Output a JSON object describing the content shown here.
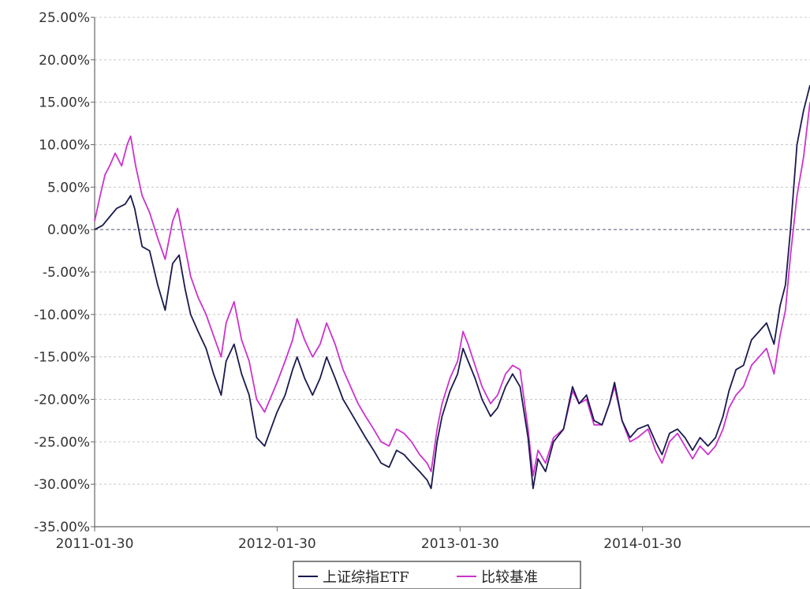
{
  "chart_data": {
    "type": "line",
    "title": "",
    "xlabel": "",
    "ylabel": "",
    "x_ticks": [
      "2011-01-30",
      "2012-01-30",
      "2013-01-30",
      "2014-01-30"
    ],
    "y_ticks": [
      "25.00%",
      "20.00%",
      "15.00%",
      "10.00%",
      "5.00%",
      "0.00%",
      "-5.00%",
      "-10.00%",
      "-15.00%",
      "-20.00%",
      "-25.00%",
      "-30.00%",
      "-35.00%"
    ],
    "xlim": [
      "2011-01-30",
      "2014-12-31"
    ],
    "ylim": [
      -35,
      25
    ],
    "y_unit": "%",
    "grid": "horizontal dashed",
    "zero_line": "dashed",
    "legend_position": "bottom-center",
    "series": [
      {
        "name": "上证综指ETF",
        "color": "#1a1a4e",
        "points": [
          [
            "2011-01-30",
            0.0
          ],
          [
            "2011-02-15",
            0.5
          ],
          [
            "2011-03-01",
            1.5
          ],
          [
            "2011-03-15",
            2.5
          ],
          [
            "2011-04-01",
            3.0
          ],
          [
            "2011-04-12",
            4.0
          ],
          [
            "2011-04-20",
            2.5
          ],
          [
            "2011-05-05",
            -2.0
          ],
          [
            "2011-05-20",
            -2.5
          ],
          [
            "2011-06-05",
            -6.5
          ],
          [
            "2011-06-20",
            -9.5
          ],
          [
            "2011-07-05",
            -4.0
          ],
          [
            "2011-07-18",
            -3.0
          ],
          [
            "2011-07-30",
            -7.0
          ],
          [
            "2011-08-10",
            -10.0
          ],
          [
            "2011-08-25",
            -12.0
          ],
          [
            "2011-09-10",
            -14.0
          ],
          [
            "2011-09-25",
            -17.0
          ],
          [
            "2011-10-10",
            -19.5
          ],
          [
            "2011-10-20",
            -15.5
          ],
          [
            "2011-11-05",
            -13.5
          ],
          [
            "2011-11-20",
            -17.0
          ],
          [
            "2011-12-05",
            -19.5
          ],
          [
            "2011-12-20",
            -24.5
          ],
          [
            "2012-01-05",
            -25.5
          ],
          [
            "2012-01-30",
            -21.5
          ],
          [
            "2012-02-15",
            -19.5
          ],
          [
            "2012-03-01",
            -16.5
          ],
          [
            "2012-03-10",
            -15.0
          ],
          [
            "2012-03-25",
            -17.5
          ],
          [
            "2012-04-10",
            -19.5
          ],
          [
            "2012-04-25",
            -17.5
          ],
          [
            "2012-05-08",
            -15.0
          ],
          [
            "2012-05-25",
            -17.5
          ],
          [
            "2012-06-10",
            -20.0
          ],
          [
            "2012-06-25",
            -21.5
          ],
          [
            "2012-07-10",
            -23.0
          ],
          [
            "2012-07-25",
            -24.5
          ],
          [
            "2012-08-10",
            -26.0
          ],
          [
            "2012-08-25",
            -27.5
          ],
          [
            "2012-09-10",
            -28.0
          ],
          [
            "2012-09-25",
            -26.0
          ],
          [
            "2012-10-10",
            -26.5
          ],
          [
            "2012-10-25",
            -27.5
          ],
          [
            "2012-11-10",
            -28.5
          ],
          [
            "2012-11-25",
            -29.5
          ],
          [
            "2012-12-03",
            -30.5
          ],
          [
            "2012-12-15",
            -25.0
          ],
          [
            "2012-12-25",
            -22.0
          ],
          [
            "2013-01-10",
            -19.0
          ],
          [
            "2013-01-25",
            -17.0
          ],
          [
            "2013-02-05",
            -14.0
          ],
          [
            "2013-02-15",
            -15.5
          ],
          [
            "2013-03-01",
            -17.5
          ],
          [
            "2013-03-15",
            -20.0
          ],
          [
            "2013-04-01",
            -22.0
          ],
          [
            "2013-04-15",
            -21.0
          ],
          [
            "2013-05-01",
            -18.5
          ],
          [
            "2013-05-15",
            -17.0
          ],
          [
            "2013-05-30",
            -18.5
          ],
          [
            "2013-06-15",
            -24.5
          ],
          [
            "2013-06-25",
            -30.5
          ],
          [
            "2013-07-05",
            -27.0
          ],
          [
            "2013-07-20",
            -28.5
          ],
          [
            "2013-08-05",
            -25.0
          ],
          [
            "2013-08-25",
            -23.5
          ],
          [
            "2013-09-12",
            -18.5
          ],
          [
            "2013-09-25",
            -20.5
          ],
          [
            "2013-10-10",
            -19.5
          ],
          [
            "2013-10-25",
            -22.5
          ],
          [
            "2013-11-10",
            -23.0
          ],
          [
            "2013-11-25",
            -20.5
          ],
          [
            "2013-12-05",
            -18.0
          ],
          [
            "2013-12-20",
            -22.5
          ],
          [
            "2014-01-05",
            -24.5
          ],
          [
            "2014-01-20",
            -23.5
          ],
          [
            "2014-02-10",
            -23.0
          ],
          [
            "2014-02-25",
            -25.0
          ],
          [
            "2014-03-10",
            -26.5
          ],
          [
            "2014-03-25",
            -24.0
          ],
          [
            "2014-04-10",
            -23.5
          ],
          [
            "2014-04-25",
            -24.5
          ],
          [
            "2014-05-10",
            -26.0
          ],
          [
            "2014-05-25",
            -24.5
          ],
          [
            "2014-06-10",
            -25.5
          ],
          [
            "2014-06-25",
            -24.5
          ],
          [
            "2014-07-10",
            -22.0
          ],
          [
            "2014-07-22",
            -19.0
          ],
          [
            "2014-08-05",
            -16.5
          ],
          [
            "2014-08-20",
            -16.0
          ],
          [
            "2014-09-05",
            -13.0
          ],
          [
            "2014-09-20",
            -12.0
          ],
          [
            "2014-10-05",
            -11.0
          ],
          [
            "2014-10-20",
            -13.5
          ],
          [
            "2014-11-01",
            -9.0
          ],
          [
            "2014-11-12",
            -6.5
          ],
          [
            "2014-11-22",
            0.0
          ],
          [
            "2014-12-05",
            10.0
          ],
          [
            "2014-12-18",
            14.0
          ],
          [
            "2014-12-31",
            17.0
          ]
        ]
      },
      {
        "name": "比较基准",
        "color": "#cc33cc",
        "points": [
          [
            "2011-01-30",
            1.0
          ],
          [
            "2011-02-10",
            4.0
          ],
          [
            "2011-02-20",
            6.5
          ],
          [
            "2011-03-01",
            7.5
          ],
          [
            "2011-03-12",
            9.0
          ],
          [
            "2011-03-25",
            7.5
          ],
          [
            "2011-04-05",
            10.0
          ],
          [
            "2011-04-12",
            11.0
          ],
          [
            "2011-04-22",
            7.5
          ],
          [
            "2011-05-05",
            4.0
          ],
          [
            "2011-05-20",
            2.0
          ],
          [
            "2011-06-05",
            -1.0
          ],
          [
            "2011-06-20",
            -3.5
          ],
          [
            "2011-07-05",
            1.0
          ],
          [
            "2011-07-15",
            2.5
          ],
          [
            "2011-07-28",
            -1.5
          ],
          [
            "2011-08-10",
            -5.5
          ],
          [
            "2011-08-25",
            -8.0
          ],
          [
            "2011-09-10",
            -10.0
          ],
          [
            "2011-09-25",
            -12.5
          ],
          [
            "2011-10-10",
            -15.0
          ],
          [
            "2011-10-20",
            -11.0
          ],
          [
            "2011-11-05",
            -8.5
          ],
          [
            "2011-11-20",
            -13.0
          ],
          [
            "2011-12-05",
            -15.5
          ],
          [
            "2011-12-20",
            -20.0
          ],
          [
            "2012-01-05",
            -21.5
          ],
          [
            "2012-01-30",
            -18.0
          ],
          [
            "2012-02-15",
            -15.5
          ],
          [
            "2012-03-01",
            -13.0
          ],
          [
            "2012-03-10",
            -10.5
          ],
          [
            "2012-03-25",
            -13.0
          ],
          [
            "2012-04-10",
            -15.0
          ],
          [
            "2012-04-25",
            -13.5
          ],
          [
            "2012-05-08",
            -11.0
          ],
          [
            "2012-05-25",
            -13.5
          ],
          [
            "2012-06-10",
            -16.5
          ],
          [
            "2012-06-25",
            -18.5
          ],
          [
            "2012-07-10",
            -20.5
          ],
          [
            "2012-07-25",
            -22.0
          ],
          [
            "2012-08-10",
            -23.5
          ],
          [
            "2012-08-25",
            -25.0
          ],
          [
            "2012-09-10",
            -25.5
          ],
          [
            "2012-09-25",
            -23.5
          ],
          [
            "2012-10-10",
            -24.0
          ],
          [
            "2012-10-25",
            -25.0
          ],
          [
            "2012-11-10",
            -26.5
          ],
          [
            "2012-11-25",
            -27.5
          ],
          [
            "2012-12-03",
            -28.5
          ],
          [
            "2012-12-15",
            -23.5
          ],
          [
            "2012-12-25",
            -20.5
          ],
          [
            "2013-01-10",
            -17.5
          ],
          [
            "2013-01-25",
            -15.5
          ],
          [
            "2013-02-05",
            -12.0
          ],
          [
            "2013-02-15",
            -13.5
          ],
          [
            "2013-03-01",
            -16.0
          ],
          [
            "2013-03-15",
            -18.5
          ],
          [
            "2013-04-01",
            -20.5
          ],
          [
            "2013-04-15",
            -19.5
          ],
          [
            "2013-05-01",
            -17.0
          ],
          [
            "2013-05-15",
            -16.0
          ],
          [
            "2013-05-30",
            -16.5
          ],
          [
            "2013-06-15",
            -23.5
          ],
          [
            "2013-06-25",
            -29.0
          ],
          [
            "2013-07-05",
            -26.0
          ],
          [
            "2013-07-20",
            -27.5
          ],
          [
            "2013-08-05",
            -24.5
          ],
          [
            "2013-08-25",
            -23.5
          ],
          [
            "2013-09-12",
            -19.0
          ],
          [
            "2013-09-25",
            -20.5
          ],
          [
            "2013-10-10",
            -20.0
          ],
          [
            "2013-10-25",
            -23.0
          ],
          [
            "2013-11-10",
            -23.0
          ],
          [
            "2013-11-25",
            -20.5
          ],
          [
            "2013-12-05",
            -18.5
          ],
          [
            "2013-12-20",
            -22.5
          ],
          [
            "2014-01-05",
            -25.0
          ],
          [
            "2014-01-20",
            -24.5
          ],
          [
            "2014-02-10",
            -23.5
          ],
          [
            "2014-02-25",
            -26.0
          ],
          [
            "2014-03-10",
            -27.5
          ],
          [
            "2014-03-25",
            -25.0
          ],
          [
            "2014-04-10",
            -24.0
          ],
          [
            "2014-04-25",
            -25.5
          ],
          [
            "2014-05-10",
            -27.0
          ],
          [
            "2014-05-25",
            -25.5
          ],
          [
            "2014-06-10",
            -26.5
          ],
          [
            "2014-06-25",
            -25.5
          ],
          [
            "2014-07-10",
            -23.5
          ],
          [
            "2014-07-22",
            -21.0
          ],
          [
            "2014-08-05",
            -19.5
          ],
          [
            "2014-08-20",
            -18.5
          ],
          [
            "2014-09-05",
            -16.0
          ],
          [
            "2014-09-20",
            -15.0
          ],
          [
            "2014-10-05",
            -14.0
          ],
          [
            "2014-10-20",
            -17.0
          ],
          [
            "2014-11-01",
            -12.5
          ],
          [
            "2014-11-12",
            -9.5
          ],
          [
            "2014-11-22",
            -3.0
          ],
          [
            "2014-12-05",
            4.0
          ],
          [
            "2014-12-18",
            8.5
          ],
          [
            "2014-12-31",
            15.0
          ]
        ]
      }
    ]
  }
}
